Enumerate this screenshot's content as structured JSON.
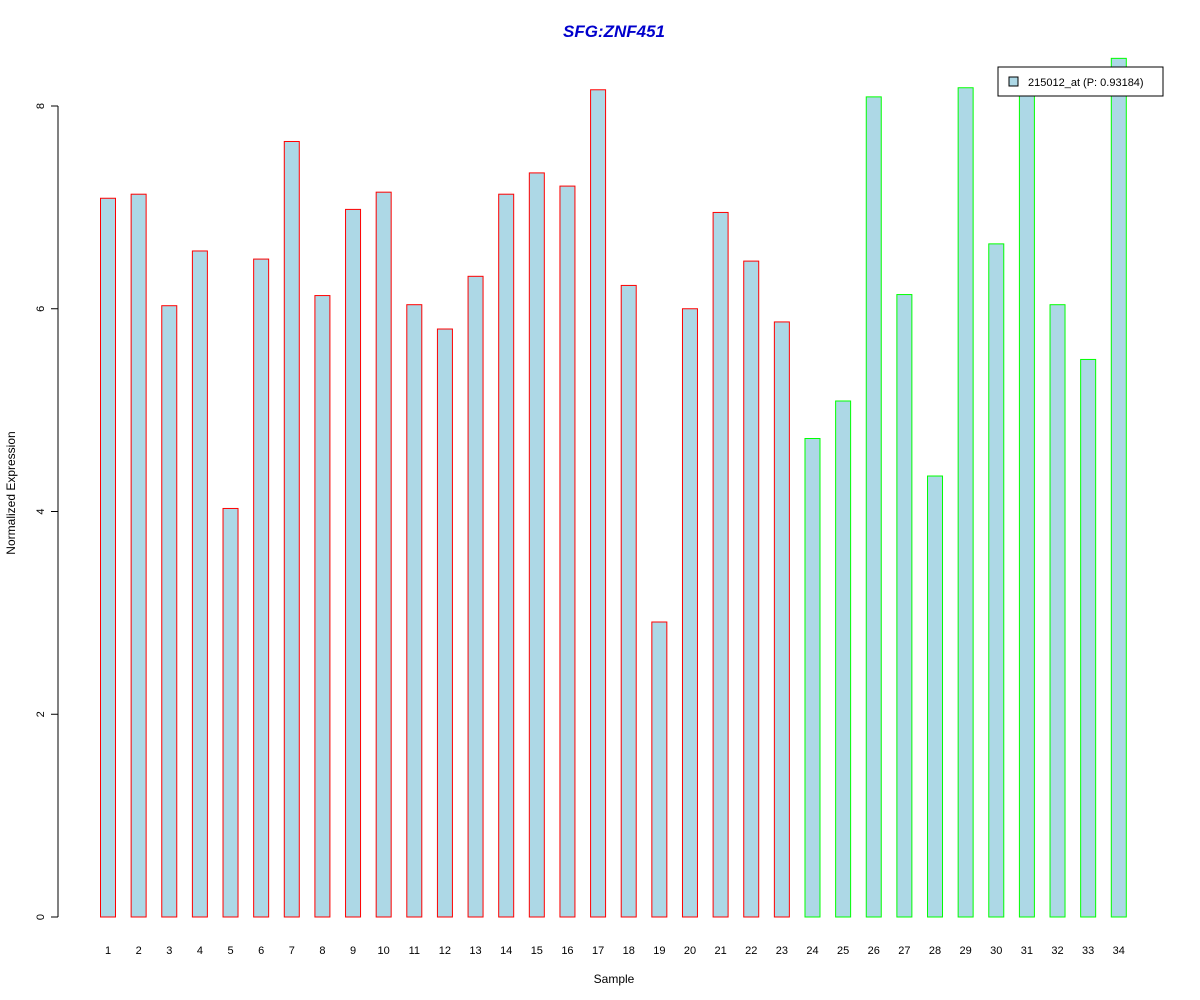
{
  "chart_data": {
    "type": "bar",
    "title": "SFG:ZNF451",
    "xlabel": "Sample",
    "ylabel": "Normalized Expression",
    "ylim": [
      0,
      8.5
    ],
    "yticks": [
      0,
      2,
      4,
      6,
      8
    ],
    "categories": [
      "1",
      "2",
      "3",
      "4",
      "5",
      "6",
      "7",
      "8",
      "9",
      "10",
      "11",
      "12",
      "13",
      "14",
      "15",
      "16",
      "17",
      "18",
      "19",
      "20",
      "21",
      "22",
      "23",
      "24",
      "25",
      "26",
      "27",
      "28",
      "29",
      "30",
      "31",
      "32",
      "33",
      "34"
    ],
    "series": [
      {
        "name": "215012_at (P: 0.93184)",
        "values": [
          7.09,
          7.13,
          6.03,
          6.57,
          4.03,
          6.49,
          7.65,
          6.13,
          6.98,
          7.15,
          6.04,
          5.8,
          6.32,
          7.13,
          7.34,
          7.21,
          8.16,
          6.23,
          2.91,
          6.0,
          6.95,
          6.47,
          5.87,
          4.72,
          5.09,
          8.09,
          6.14,
          4.35,
          8.18,
          6.64,
          8.25,
          6.04,
          5.5,
          8.47
        ]
      }
    ],
    "fill_color": "#add8e6",
    "group_border_colors": {
      "group1": "#ff0000",
      "group2": "#00ff00"
    },
    "group_sizes": [
      23,
      11
    ],
    "title_color": "#0000cc",
    "legend_position": "top-right",
    "grid": false
  }
}
